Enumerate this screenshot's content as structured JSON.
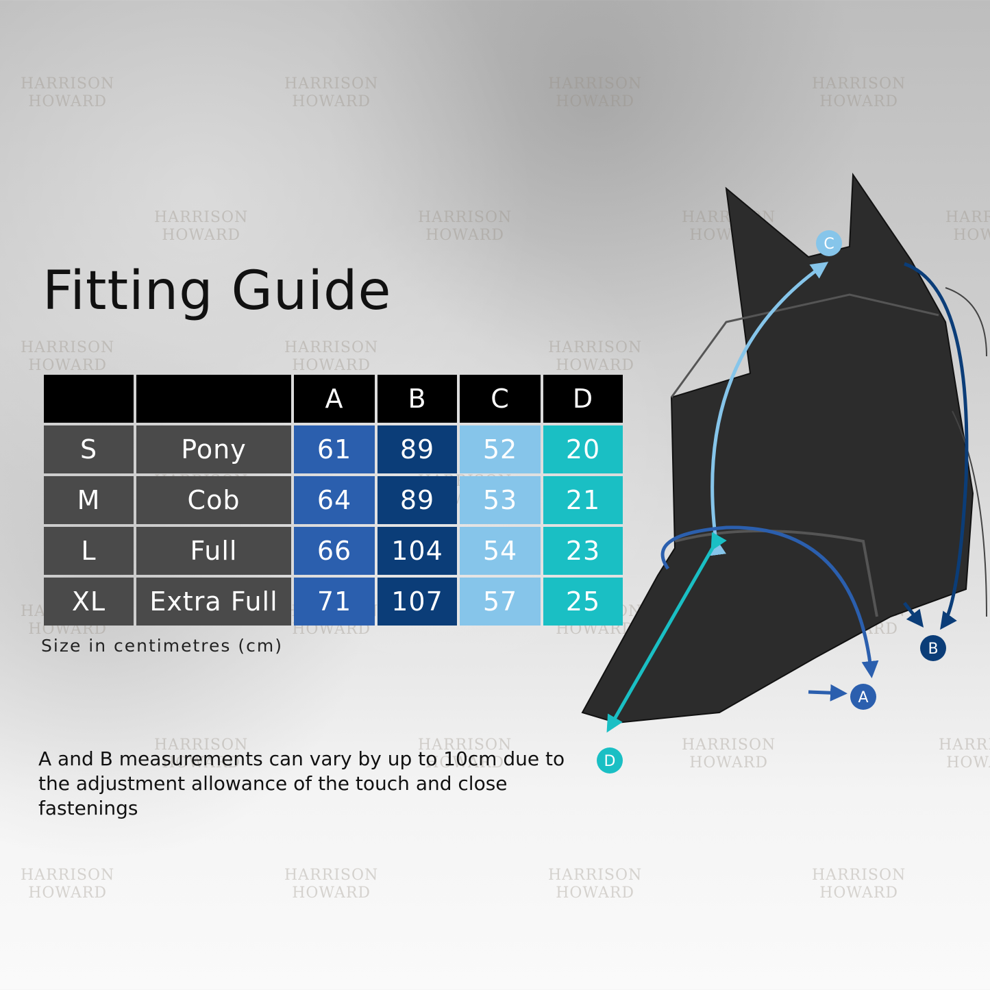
{
  "title": "Fitting Guide",
  "table": {
    "headers": [
      "",
      "",
      "A",
      "B",
      "C",
      "D"
    ],
    "rows": [
      {
        "size": "S",
        "name": "Pony",
        "a": "61",
        "b": "89",
        "c": "52",
        "d": "20"
      },
      {
        "size": "M",
        "name": "Cob",
        "a": "64",
        "b": "89",
        "c": "53",
        "d": "21"
      },
      {
        "size": "L",
        "name": "Full",
        "a": "66",
        "b": "104",
        "c": "54",
        "d": "23"
      },
      {
        "size": "XL",
        "name": "Extra Full",
        "a": "71",
        "b": "107",
        "c": "57",
        "d": "25"
      }
    ]
  },
  "unit_note": "Size in centimetres (cm)",
  "footnote": "A and B measurements can vary by up to 10cm due to the adjustment allowance of the touch and close fastenings",
  "diagram_labels": {
    "a": "A",
    "b": "B",
    "c": "C",
    "d": "D"
  },
  "watermark": "HARRISON HOWARD",
  "colors": {
    "a": "#2b5fae",
    "b": "#0b3d78",
    "c": "#86c5ea",
    "d": "#1abfc4",
    "size_cells": "#4a4a4a",
    "header": "#000000"
  }
}
